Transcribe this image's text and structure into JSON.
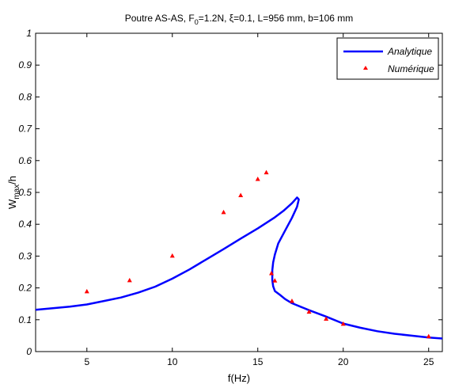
{
  "chart_data": {
    "type": "line",
    "title": "Poutre AS-AS, F",
    "title_sub": "0",
    "title_rest": "=1.2N, ξ=0.1, L=956 mm, b=106 mm",
    "xlabel": "f(Hz)",
    "ylabel_main": "W",
    "ylabel_sub": "max",
    "ylabel_rest": "/h",
    "xlim": [
      2,
      25.8
    ],
    "ylim": [
      0,
      1
    ],
    "xticks": [
      5,
      10,
      15,
      20,
      25
    ],
    "yticks": [
      0,
      0.1,
      0.2,
      0.3,
      0.4,
      0.5,
      0.6,
      0.7,
      0.8,
      0.9,
      1
    ],
    "xtick_labels": [
      "5",
      "10",
      "15",
      "20",
      "25"
    ],
    "ytick_labels": [
      "0",
      "0.1",
      "0.2",
      "0.3",
      "0.4",
      "0.5",
      "0.6",
      "0.7",
      "0.8",
      "0.9",
      "1"
    ],
    "grid": false,
    "legend_position": "top-right",
    "series": [
      {
        "name": "Analytique",
        "style": "line",
        "color": "#0000ff",
        "x": [
          2,
          3,
          4,
          5,
          6,
          7,
          8,
          9,
          10,
          11,
          12,
          13,
          14,
          15,
          16,
          16.5,
          17,
          17.2,
          17.3,
          17.4,
          17.3,
          17.0,
          16.6,
          16.2,
          16.0,
          15.9,
          15.85,
          15.85,
          15.9,
          16.0,
          16.3,
          16.6,
          17,
          18,
          19,
          20,
          21,
          22,
          23,
          24,
          25,
          25.8
        ],
        "y": [
          0.131,
          0.136,
          0.141,
          0.148,
          0.159,
          0.17,
          0.185,
          0.204,
          0.229,
          0.258,
          0.29,
          0.322,
          0.355,
          0.387,
          0.422,
          0.442,
          0.466,
          0.478,
          0.484,
          0.478,
          0.455,
          0.42,
          0.38,
          0.34,
          0.305,
          0.28,
          0.255,
          0.225,
          0.205,
          0.19,
          0.178,
          0.165,
          0.152,
          0.13,
          0.11,
          0.088,
          0.075,
          0.064,
          0.056,
          0.05,
          0.044,
          0.041
        ]
      },
      {
        "name": "Numérique",
        "style": "marker",
        "color": "#ff0000",
        "x": [
          5,
          7.5,
          10,
          13,
          14,
          15,
          15.5,
          15.8,
          16,
          17,
          18,
          19,
          20,
          25
        ],
        "y": [
          0.188,
          0.223,
          0.3,
          0.437,
          0.49,
          0.541,
          0.562,
          0.245,
          0.222,
          0.158,
          0.124,
          0.102,
          0.086,
          0.047
        ]
      }
    ]
  }
}
